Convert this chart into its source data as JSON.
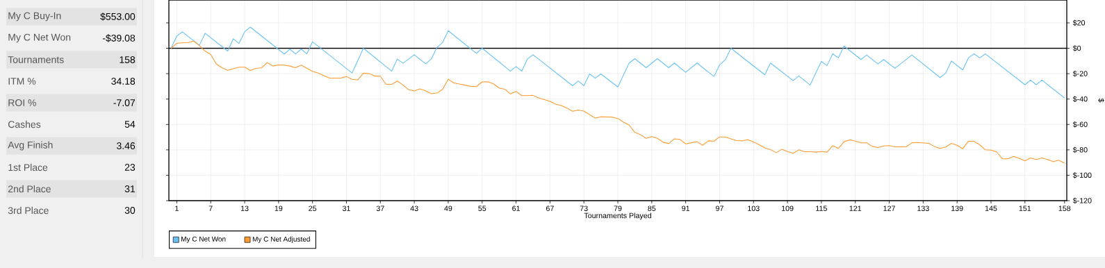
{
  "chart_data": [
    {
      "type": "other",
      "categories": [
        "My C Buy-In",
        "My C Net Won",
        "Tournaments",
        "ITM %",
        "ROI %",
        "Cashes",
        "Avg Finish",
        "1st Place",
        "2nd Place",
        "3rd Place"
      ],
      "value_labels": [
        "$553.00",
        "-$39.08",
        "158",
        "34.18",
        "-7.07",
        "54",
        "3.46",
        "23",
        "31",
        "30"
      ],
      "colors": [
        "#e3e3e3",
        "#f0f0f0",
        "#e3e3e3",
        "#f0f0f0",
        "#e3e3e3",
        "#f0f0f0",
        "#e3e3e3",
        "#f0f0f0",
        "#e3e3e3",
        "#f0f0f0"
      ]
    },
    {
      "type": "line",
      "xlabel": "Tournaments Played",
      "ylabel": "$",
      "xlim": [
        -0.4,
        158.4
      ],
      "ylim": [
        -120,
        38
      ],
      "xticks": [
        1,
        7,
        13,
        19,
        25,
        31,
        37,
        43,
        49,
        55,
        61,
        67,
        73,
        79,
        85,
        91,
        97,
        103,
        109,
        115,
        121,
        127,
        133,
        139,
        145,
        151,
        158
      ],
      "yticks": [
        {
          "value": 20,
          "label": "$20"
        },
        {
          "value": 0,
          "label": "$0"
        },
        {
          "value": -20,
          "label": "$-20"
        },
        {
          "value": -40,
          "label": "$-40"
        },
        {
          "value": -60,
          "label": "$-60"
        },
        {
          "value": -80,
          "label": "$-80"
        },
        {
          "value": -100,
          "label": "$-100"
        },
        {
          "value": -120,
          "label": "$-120"
        }
      ],
      "grid": true,
      "legend": "bottom left",
      "ref_lines": [
        {
          "axis": "y",
          "value": 0,
          "color": "#000000"
        }
      ],
      "series": [
        {
          "name": "My C Net Won",
          "color": "#66c2f5",
          "x": [
            0,
            1,
            2,
            5,
            6,
            10,
            11,
            12,
            13,
            14,
            20,
            21,
            22,
            23,
            24,
            25,
            32,
            34,
            39,
            40,
            41,
            43,
            45,
            46,
            47,
            48,
            49,
            54,
            55,
            60,
            61,
            62,
            63,
            64,
            71,
            72,
            73,
            74,
            75,
            76,
            79,
            81,
            82,
            84,
            86,
            88,
            89,
            91,
            93,
            96,
            97,
            98,
            99,
            105,
            106,
            110,
            111,
            113,
            115,
            116,
            117,
            118,
            119,
            122,
            123,
            125,
            126,
            128,
            131,
            136,
            137,
            138,
            140,
            141,
            142,
            143,
            144,
            151,
            152,
            153,
            154,
            158
          ],
          "values": [
            0,
            9.6,
            12.9,
            2.4,
            11.8,
            -2.2,
            7.5,
            3.8,
            12.9,
            16.7,
            -4.5,
            -0.7,
            -4.4,
            -0.7,
            -4.4,
            5.1,
            -19.5,
            0,
            -18,
            -8.5,
            -11.8,
            -5.1,
            -12.2,
            -8.5,
            0.5,
            4.5,
            13.8,
            -4,
            0,
            -18,
            -14.4,
            -18,
            -8.5,
            -5.1,
            -29.5,
            -25.8,
            -29.5,
            -20.2,
            -23.6,
            -20.2,
            -30.5,
            -11.6,
            -8.2,
            -15.3,
            -8.2,
            -15.3,
            -11.6,
            -18.9,
            -11.6,
            -22.2,
            -13.1,
            -9.1,
            0,
            -20.9,
            -11.6,
            -25.5,
            -21.8,
            -28.9,
            -10.4,
            -13.6,
            -4.4,
            -7.6,
            1.8,
            -8.9,
            -5.3,
            -12.4,
            -8.9,
            -15.8,
            -5.3,
            -23.1,
            -19.5,
            -10,
            -17.1,
            -7.6,
            -4.4,
            -7.6,
            -4.4,
            -28.7,
            -25.1,
            -28.7,
            -25.1,
            -39.1
          ]
        },
        {
          "name": "My C Net Adjusted",
          "color": "#ff9a2e",
          "x": [
            0,
            1,
            3,
            4,
            5,
            6,
            7,
            8,
            9,
            10,
            12,
            13,
            14,
            15,
            16,
            17,
            18,
            19,
            20,
            21,
            22,
            23,
            25,
            26,
            28,
            30,
            31,
            32,
            33,
            34,
            35,
            36,
            37,
            38,
            39,
            40,
            41,
            42,
            43,
            44,
            45,
            46,
            47,
            48,
            49,
            50,
            51,
            53,
            54,
            55,
            56,
            57,
            58,
            59,
            60,
            61,
            62,
            64,
            65,
            67,
            68,
            69,
            70,
            71,
            72,
            73,
            75,
            76,
            78,
            79,
            80,
            81,
            82,
            83,
            84,
            85,
            86,
            87,
            88,
            89,
            90,
            91,
            93,
            94,
            95,
            96,
            97,
            98,
            99,
            100,
            101,
            102,
            103,
            104,
            105,
            106,
            107,
            108,
            109,
            110,
            111,
            112,
            113,
            114,
            115,
            116,
            117,
            118,
            119,
            120,
            121,
            122,
            123,
            124,
            125,
            126,
            127,
            128,
            130,
            131,
            132,
            134,
            135,
            136,
            137,
            138,
            139,
            140,
            141,
            142,
            143,
            144,
            145,
            146,
            147,
            148,
            149,
            150,
            151,
            152,
            153,
            154,
            155,
            156,
            157,
            158
          ],
          "values": [
            0,
            4.0,
            4.5,
            5.6,
            2.0,
            -2.2,
            -4.9,
            -12.4,
            -15.3,
            -17.3,
            -14.9,
            -14.9,
            -17.5,
            -15.8,
            -15.3,
            -11.3,
            -14.0,
            -13.1,
            -13.3,
            -14.0,
            -15.3,
            -13.3,
            -18.2,
            -19.6,
            -23.5,
            -23.5,
            -22.2,
            -24.5,
            -24.9,
            -19.6,
            -20.0,
            -21.8,
            -22.0,
            -28.4,
            -28.4,
            -25.8,
            -28.9,
            -32.7,
            -33.6,
            -32.0,
            -33.5,
            -35.8,
            -35.3,
            -32.4,
            -24.4,
            -27.3,
            -28.2,
            -30,
            -30.2,
            -26.5,
            -26.4,
            -28,
            -31.3,
            -32.2,
            -36,
            -34,
            -37.3,
            -37.1,
            -39.1,
            -41.8,
            -44,
            -45.1,
            -47.1,
            -49.6,
            -48.7,
            -49.5,
            -54.9,
            -54,
            -54.2,
            -55.3,
            -58.2,
            -60.4,
            -66.2,
            -68,
            -70.9,
            -69.6,
            -70.9,
            -74,
            -75.1,
            -71.3,
            -71.8,
            -75.3,
            -73.6,
            -76.4,
            -72.9,
            -73.1,
            -69.8,
            -69.8,
            -71.4,
            -72.7,
            -72.9,
            -72,
            -73.8,
            -76,
            -78.4,
            -79.8,
            -82.2,
            -79.6,
            -81.3,
            -82.7,
            -80,
            -81.5,
            -81.5,
            -81.8,
            -81.3,
            -81.8,
            -76.7,
            -78.9,
            -73.6,
            -72.2,
            -73.1,
            -74.4,
            -74.5,
            -77.3,
            -78.2,
            -76.9,
            -76.7,
            -77.6,
            -77.6,
            -74.4,
            -74.2,
            -74.9,
            -77.3,
            -78.9,
            -77.8,
            -74.9,
            -76.4,
            -79.1,
            -73.3,
            -73.3,
            -76,
            -80,
            -80.2,
            -81.6,
            -87.1,
            -87.1,
            -85.1,
            -86.7,
            -88.7,
            -86.4,
            -87.6,
            -86.4,
            -87.6,
            -89.3,
            -88.2,
            -90.5
          ]
        }
      ]
    }
  ]
}
